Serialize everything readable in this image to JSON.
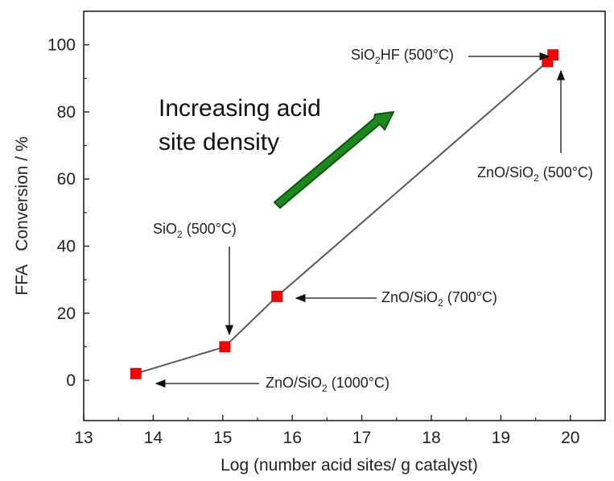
{
  "chart_data": {
    "type": "scatter",
    "xlabel": "Log (number acid sites/ g catalyst)",
    "ylabel": "FFA   Conversion / %",
    "xlim": [
      13,
      20.5
    ],
    "ylim": [
      -12,
      110
    ],
    "xticks": [
      "13",
      "14",
      "15",
      "16",
      "17",
      "18",
      "19",
      "20"
    ],
    "yticks": [
      "0",
      "20",
      "40",
      "60",
      "80",
      "100"
    ],
    "series": [
      {
        "points": [
          {
            "x": 13.75,
            "y": 2
          },
          {
            "x": 15.03,
            "y": 10
          },
          {
            "x": 15.78,
            "y": 25
          },
          {
            "x": 19.67,
            "y": 95
          },
          {
            "x": 19.75,
            "y": 97
          }
        ],
        "marker": "square",
        "marker_color": "#ff0000",
        "line_color": "#5a5a5a"
      }
    ],
    "annotations": [
      {
        "id": "zno1000",
        "text": "ZnO/SiO",
        "sub": "2",
        "rest": " (1000°C)"
      },
      {
        "id": "sio2",
        "text": "SiO",
        "sub": "2",
        "rest": " (500°C)"
      },
      {
        "id": "zno700",
        "text": "ZnO/SiO",
        "sub": "2",
        "rest": " (700°C)"
      },
      {
        "id": "sio2hf",
        "text": "SiO",
        "sub": "2",
        "rest": "HF (500°C)"
      },
      {
        "id": "zno500",
        "text": "ZnO/SiO",
        "sub": "2",
        "rest": " (500°C)"
      }
    ],
    "big_annotation": {
      "line1": "Increasing acid",
      "line2": "site density",
      "arrow_color": "#1a8a1a"
    },
    "grid": false,
    "legend": "none"
  }
}
